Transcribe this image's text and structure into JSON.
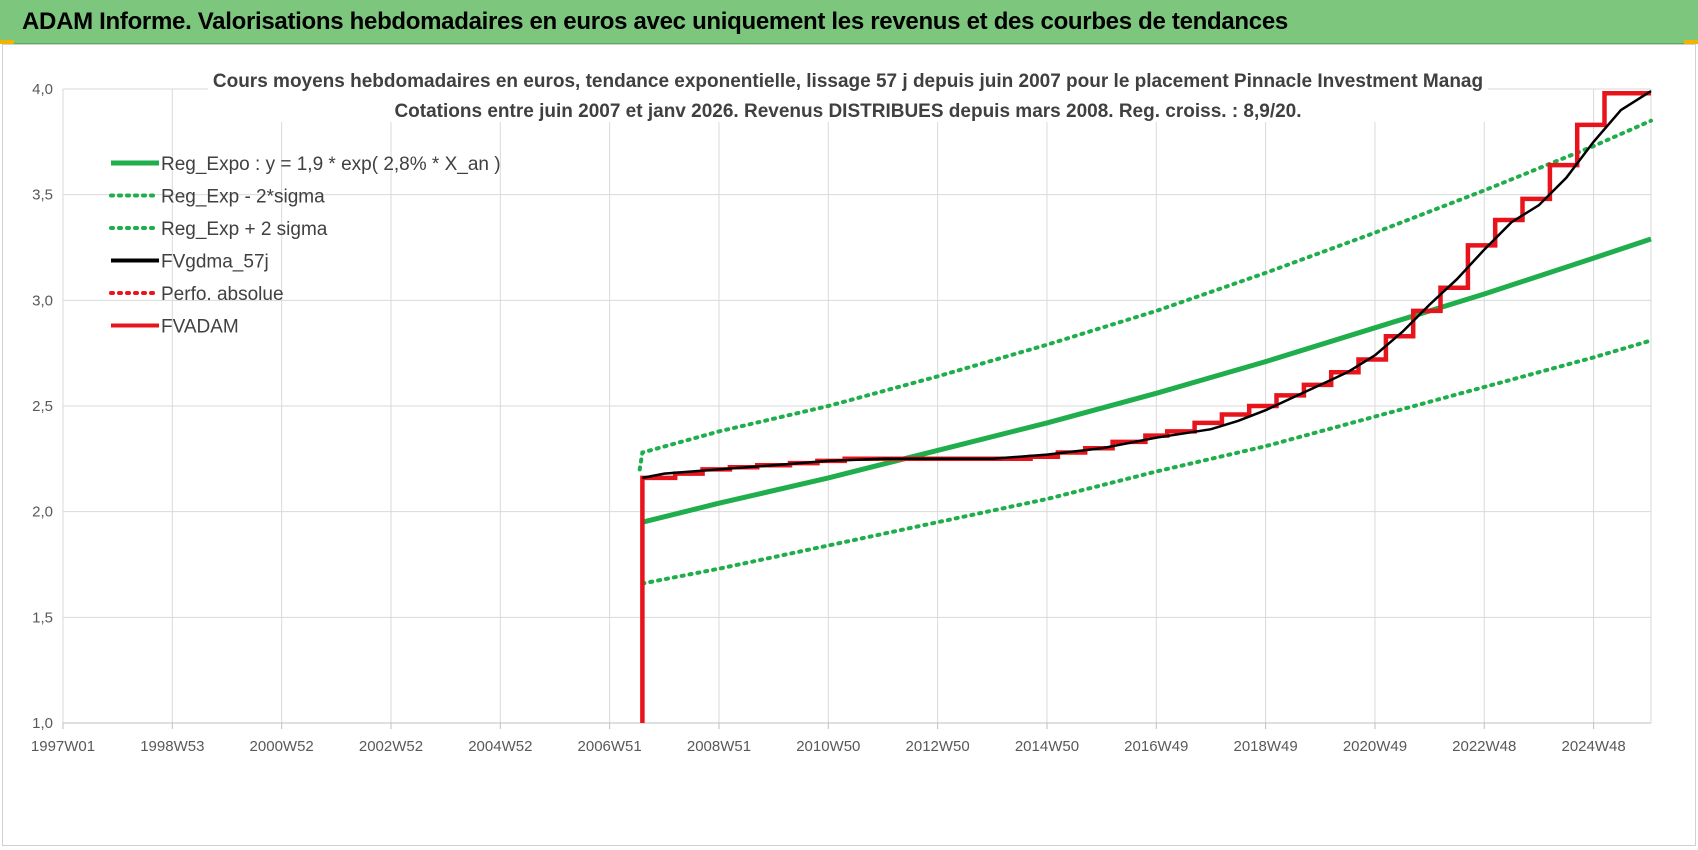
{
  "header": {
    "title": "ADAM Informe. Valorisations hebdomadaires en euros avec uniquement les revenus et des courbes de tendances",
    "background_color": "#7dc67d"
  },
  "chart_data": {
    "type": "line",
    "title_line1": "Cours moyens hebdomadaires en euros, tendance exponentielle, lissage 57 j depuis juin 2007 pour le placement Pinnacle Investment Manag",
    "title_line2": "Cotations entre juin 2007 et janv 2026. Revenus DISTRIBUES depuis mars 2008. Reg. croiss. : 8,9/20.",
    "xlabel": "",
    "ylabel": "",
    "x_tick_labels": [
      "1997W01",
      "1998W53",
      "2000W52",
      "2002W52",
      "2004W52",
      "2006W51",
      "2008W51",
      "2010W50",
      "2012W50",
      "2014W50",
      "2016W49",
      "2018W49",
      "2020W49",
      "2022W48",
      "2024W48"
    ],
    "x_ticks_years": [
      1997.0,
      1999.0,
      2001.0,
      2003.0,
      2005.0,
      2007.0,
      2009.0,
      2011.0,
      2013.0,
      2015.0,
      2017.0,
      2019.0,
      2021.0,
      2023.0,
      2025.0
    ],
    "xlim": [
      1997.0,
      2026.05
    ],
    "ylim": [
      1.0,
      4.0
    ],
    "y_ticks": [
      1.0,
      1.5,
      2.0,
      2.5,
      3.0,
      3.5,
      4.0
    ],
    "y_tick_labels": [
      "1,0",
      "1,5",
      "2,0",
      "2,5",
      "3,0",
      "3,5",
      "4,0"
    ],
    "grid": true,
    "legend_position": "top-left",
    "series": [
      {
        "name": "Reg_Expo : y = 1,9 * exp( 2,8% *  X_an )",
        "style": "solid",
        "color": "#1fae4b",
        "x": [
          2007.6,
          2009.0,
          2011.0,
          2013.0,
          2015.0,
          2017.0,
          2019.0,
          2021.0,
          2023.0,
          2025.0,
          2026.05
        ],
        "y": [
          1.95,
          2.04,
          2.16,
          2.29,
          2.42,
          2.56,
          2.71,
          2.87,
          3.03,
          3.2,
          3.29
        ]
      },
      {
        "name": "Reg_Exp - 2*sigma",
        "style": "dotted",
        "color": "#1fae4b",
        "x": [
          2007.6,
          2009.0,
          2011.0,
          2013.0,
          2015.0,
          2017.0,
          2019.0,
          2021.0,
          2023.0,
          2025.0,
          2026.05
        ],
        "y": [
          1.66,
          1.73,
          1.84,
          1.95,
          2.06,
          2.19,
          2.31,
          2.45,
          2.59,
          2.73,
          2.81
        ]
      },
      {
        "name": "Reg_Exp + 2 sigma",
        "style": "dotted",
        "color": "#1fae4b",
        "x": [
          2007.55,
          2007.6,
          2009.0,
          2011.0,
          2013.0,
          2015.0,
          2017.0,
          2019.0,
          2021.0,
          2023.0,
          2025.0,
          2026.05
        ],
        "y": [
          2.2,
          2.28,
          2.38,
          2.5,
          2.64,
          2.79,
          2.95,
          3.13,
          3.32,
          3.52,
          3.73,
          3.85
        ]
      },
      {
        "name": "FVgdma_57j",
        "style": "solid",
        "color": "#000000",
        "x": [
          2007.6,
          2008.0,
          2009.0,
          2010.0,
          2011.0,
          2012.0,
          2013.0,
          2014.0,
          2015.0,
          2016.0,
          2017.0,
          2018.0,
          2018.5,
          2019.0,
          2019.5,
          2020.0,
          2020.5,
          2021.0,
          2021.5,
          2022.0,
          2022.5,
          2023.0,
          2023.5,
          2024.0,
          2024.5,
          2025.0,
          2025.5,
          2026.05
        ],
        "y": [
          2.16,
          2.18,
          2.2,
          2.22,
          2.24,
          2.25,
          2.25,
          2.25,
          2.27,
          2.3,
          2.35,
          2.39,
          2.43,
          2.48,
          2.54,
          2.6,
          2.66,
          2.74,
          2.85,
          2.98,
          3.1,
          3.24,
          3.37,
          3.45,
          3.58,
          3.75,
          3.9,
          3.99
        ]
      },
      {
        "name": "Perfo. absolue",
        "style": "dotted",
        "color": "#e8141b",
        "x": [],
        "y": []
      },
      {
        "name": "FVADAM",
        "style": "step",
        "color": "#e8141b",
        "x": [
          2007.6,
          2007.6,
          2008.2,
          2008.2,
          2008.7,
          2008.7,
          2009.2,
          2009.2,
          2009.7,
          2009.7,
          2010.3,
          2010.3,
          2010.8,
          2010.8,
          2011.3,
          2011.3,
          2011.8,
          2011.8,
          2014.7,
          2014.7,
          2015.2,
          2015.2,
          2015.7,
          2015.7,
          2016.2,
          2016.2,
          2016.8,
          2016.8,
          2017.2,
          2017.2,
          2017.7,
          2017.7,
          2018.2,
          2018.2,
          2018.7,
          2018.7,
          2019.2,
          2019.2,
          2019.7,
          2019.7,
          2020.2,
          2020.2,
          2020.7,
          2020.7,
          2021.2,
          2021.2,
          2021.7,
          2021.7,
          2022.2,
          2022.2,
          2022.7,
          2022.7,
          2023.2,
          2023.2,
          2023.7,
          2023.7,
          2024.2,
          2024.2,
          2024.7,
          2024.7,
          2025.2,
          2025.2,
          2025.7,
          2025.7,
          2026.05
        ],
        "y": [
          1.0,
          2.16,
          2.16,
          2.18,
          2.18,
          2.2,
          2.2,
          2.21,
          2.21,
          2.22,
          2.22,
          2.23,
          2.23,
          2.24,
          2.24,
          2.25,
          2.25,
          2.25,
          2.25,
          2.26,
          2.26,
          2.28,
          2.28,
          2.3,
          2.3,
          2.33,
          2.33,
          2.36,
          2.36,
          2.38,
          2.38,
          2.42,
          2.42,
          2.46,
          2.46,
          2.5,
          2.5,
          2.55,
          2.55,
          2.6,
          2.6,
          2.66,
          2.66,
          2.72,
          2.72,
          2.83,
          2.83,
          2.95,
          2.95,
          3.06,
          3.06,
          3.26,
          3.26,
          3.38,
          3.38,
          3.48,
          3.48,
          3.64,
          3.64,
          3.83,
          3.83,
          3.98,
          3.98,
          3.98,
          3.98
        ]
      }
    ]
  }
}
